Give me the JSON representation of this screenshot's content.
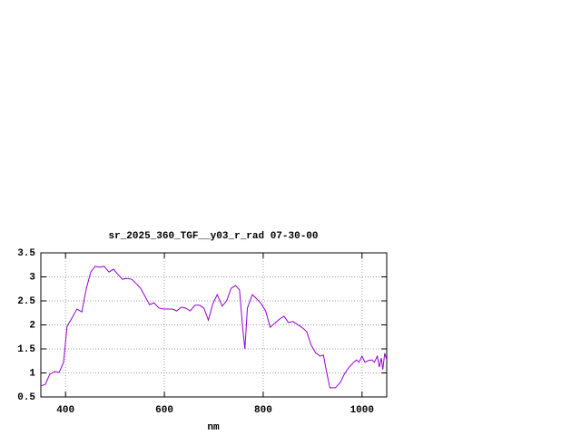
{
  "chart_data": {
    "type": "line",
    "title": "sr_2025_360_TGF__y03_r_rad 07-30-00",
    "x_label": "nm",
    "x": [
      350,
      359,
      368,
      378,
      387,
      396,
      403,
      414,
      423,
      433,
      442,
      451,
      460,
      469,
      478,
      488,
      497,
      506,
      515,
      524,
      534,
      543,
      552,
      561,
      570,
      579,
      589,
      598,
      616,
      625,
      634,
      643,
      652,
      662,
      671,
      680,
      689,
      698,
      707,
      717,
      726,
      735,
      744,
      752,
      759,
      763,
      768,
      778,
      787,
      796,
      805,
      814,
      823,
      833,
      842,
      851,
      860,
      869,
      878,
      888,
      897,
      906,
      915,
      922,
      928,
      935,
      946,
      956,
      965,
      974,
      983,
      989,
      994,
      1000,
      1006,
      1013,
      1020,
      1025,
      1031,
      1035,
      1039,
      1042,
      1046,
      1050
    ],
    "series": [
      {
        "color": "#9400d3",
        "values": [
          0.73,
          0.76,
          0.97,
          1.03,
          1.01,
          1.22,
          1.97,
          2.16,
          2.33,
          2.27,
          2.76,
          3.1,
          3.22,
          3.2,
          3.22,
          3.1,
          3.16,
          3.05,
          2.95,
          2.97,
          2.95,
          2.86,
          2.76,
          2.59,
          2.42,
          2.46,
          2.35,
          2.33,
          2.33,
          2.29,
          2.37,
          2.35,
          2.29,
          2.41,
          2.41,
          2.35,
          2.1,
          2.44,
          2.63,
          2.39,
          2.5,
          2.76,
          2.82,
          2.73,
          1.88,
          1.5,
          2.35,
          2.63,
          2.54,
          2.44,
          2.29,
          1.95,
          2.03,
          2.12,
          2.18,
          2.05,
          2.07,
          2.01,
          1.95,
          1.86,
          1.58,
          1.42,
          1.35,
          1.37,
          1.03,
          0.69,
          0.69,
          0.8,
          0.99,
          1.12,
          1.22,
          1.27,
          1.22,
          1.35,
          1.22,
          1.26,
          1.27,
          1.22,
          1.35,
          1.12,
          1.31,
          1.07,
          1.41,
          1.27
        ]
      }
    ],
    "xlim": [
      350,
      1050
    ],
    "xticks": [
      400,
      600,
      800,
      1000
    ],
    "ylim": [
      0.5,
      3.5
    ],
    "yticks": [
      0.5,
      1,
      1.5,
      2,
      2.5,
      3,
      3.5
    ],
    "grid": true
  }
}
